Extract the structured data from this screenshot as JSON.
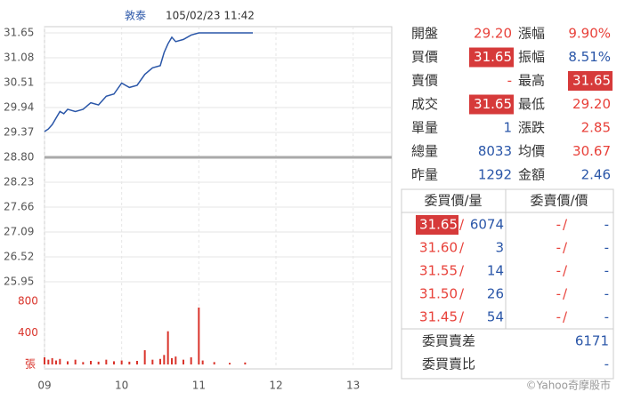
{
  "header": {
    "name": "敦泰",
    "time": "105/02/23 11:42"
  },
  "chart_data": [
    {
      "type": "line",
      "xlim": [
        9,
        13.5
      ],
      "xticks": [
        {
          "value": 9,
          "label": "09"
        },
        10,
        11,
        12,
        13
      ],
      "ylim": [
        25.95,
        31.65
      ],
      "yticks": [
        31.65,
        31.08,
        30.51,
        29.94,
        29.37,
        {
          "value": 28.8,
          "label": "28.80"
        },
        28.23,
        27.66,
        27.09,
        26.52,
        25.95
      ],
      "previous_close": 28.8,
      "grid": true,
      "series": [
        {
          "color": "#2a56a8",
          "x": [
            9.0,
            9.05,
            9.1,
            9.15,
            9.2,
            9.25,
            9.3,
            9.4,
            9.5,
            9.6,
            9.7,
            9.8,
            9.9,
            10.0,
            10.1,
            10.2,
            10.3,
            10.4,
            10.5,
            10.55,
            10.6,
            10.65,
            10.7,
            10.8,
            10.9,
            11.0,
            11.7
          ],
          "values": [
            29.39,
            29.45,
            29.55,
            29.7,
            29.85,
            29.8,
            29.9,
            29.85,
            29.9,
            30.05,
            30.0,
            30.2,
            30.25,
            30.5,
            30.4,
            30.45,
            30.7,
            30.85,
            30.9,
            31.2,
            31.4,
            31.55,
            31.45,
            31.5,
            31.6,
            31.65,
            31.65
          ]
        }
      ]
    },
    {
      "type": "bar",
      "ylim": [
        0,
        900
      ],
      "yticks": [
        800,
        400
      ],
      "unit_label": "張",
      "color": "#d9342b",
      "x": [
        9.0,
        9.05,
        9.1,
        9.15,
        9.2,
        9.3,
        9.4,
        9.5,
        9.6,
        9.7,
        9.8,
        9.9,
        10.0,
        10.1,
        10.2,
        10.3,
        10.4,
        10.5,
        10.55,
        10.6,
        10.65,
        10.7,
        10.8,
        10.9,
        11.0,
        11.05,
        11.2,
        11.4,
        11.6
      ],
      "values": [
        90,
        60,
        80,
        50,
        70,
        40,
        60,
        30,
        45,
        35,
        60,
        40,
        50,
        35,
        45,
        180,
        60,
        70,
        120,
        420,
        80,
        100,
        60,
        90,
        720,
        50,
        30,
        20,
        25
      ]
    }
  ],
  "quote": {
    "left": [
      {
        "label": "開盤",
        "value": "29.20",
        "color": "#e8413a"
      },
      {
        "label": "買價",
        "value": "31.65",
        "color": "#ffffff",
        "highlight": true
      },
      {
        "label": "賣價",
        "value": "-",
        "color": "#e8413a"
      },
      {
        "label": "成交",
        "value": "31.65",
        "color": "#ffffff",
        "highlight": true
      },
      {
        "label": "單量",
        "value": "1",
        "color": "#2a56a8"
      },
      {
        "label": "總量",
        "value": "8033",
        "color": "#2a56a8"
      },
      {
        "label": "昨量",
        "value": "1292",
        "color": "#2a56a8"
      }
    ],
    "right": [
      {
        "label": "漲幅",
        "value": "9.90%",
        "color": "#e8413a"
      },
      {
        "label": "振幅",
        "value": "8.51%",
        "color": "#2a56a8"
      },
      {
        "label": "最高",
        "value": "31.65",
        "color": "#ffffff",
        "highlight": true
      },
      {
        "label": "最低",
        "value": "29.20",
        "color": "#e8413a"
      },
      {
        "label": "漲跌",
        "value": "2.85",
        "color": "#e8413a"
      },
      {
        "label": "均價",
        "value": "30.67",
        "color": "#e8413a"
      },
      {
        "label": "金額",
        "value": "2.46",
        "color": "#2a56a8"
      }
    ]
  },
  "orderbook": {
    "headers": [
      "委買價/量",
      "委賣價/價"
    ],
    "separator": "/",
    "rows": [
      {
        "bid": "31.65",
        "bid_qty": "6074",
        "ask": "-",
        "ask_qty": "-",
        "highlight": true
      },
      {
        "bid": "31.60",
        "bid_qty": "3",
        "ask": "-",
        "ask_qty": "-"
      },
      {
        "bid": "31.55",
        "bid_qty": "14",
        "ask": "-",
        "ask_qty": "-"
      },
      {
        "bid": "31.50",
        "bid_qty": "26",
        "ask": "-",
        "ask_qty": "-"
      },
      {
        "bid": "31.45",
        "bid_qty": "54",
        "ask": "-",
        "ask_qty": "-"
      }
    ],
    "footer": [
      {
        "label": "委買賣差",
        "value": "6171"
      },
      {
        "label": "委買賣比",
        "value": "-"
      }
    ]
  },
  "copyright": "©Yahoo奇摩股市"
}
